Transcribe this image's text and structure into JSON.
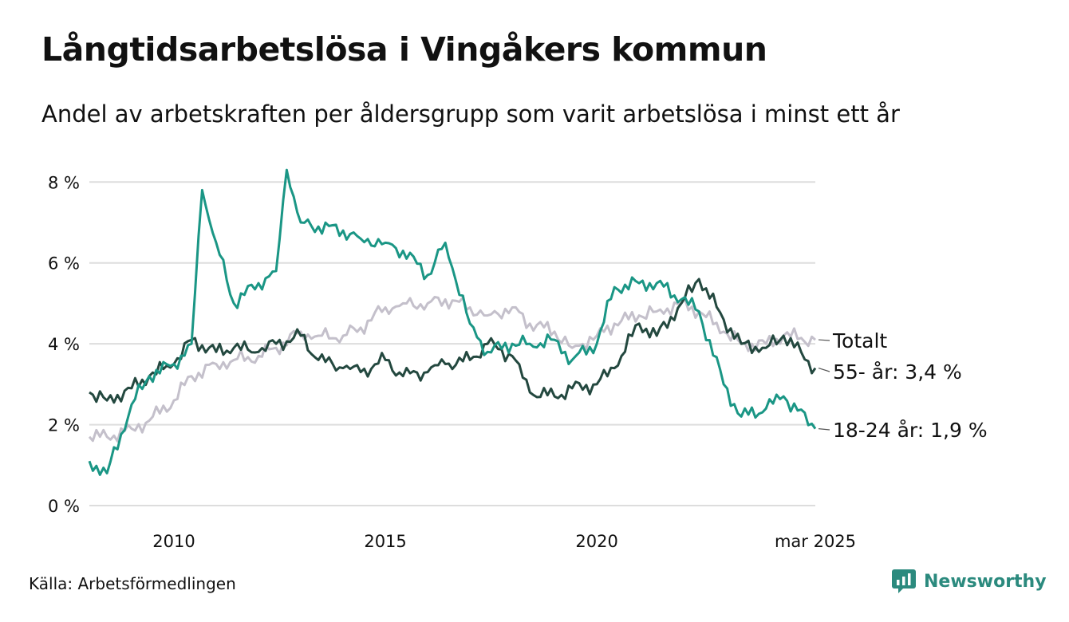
{
  "header": {
    "title": "Långtidsarbetslösa i Vingåkers kommun",
    "subtitle": "Andel av arbetskraften per åldersgrupp som varit arbetslösa i minst ett år"
  },
  "footer": {
    "source": "Källa: Arbetsförmedlingen",
    "brand": "Newsworthy"
  },
  "colors": {
    "total": "#c4c0cb",
    "age55": "#23483f",
    "age1824": "#1a9685",
    "grid": "#dddddd",
    "brand": "#2b8a7e"
  },
  "chart_data": {
    "type": "line",
    "title": "Långtidsarbetslösa i Vingåkers kommun",
    "subtitle": "Andel av arbetskraften per åldersgrupp som varit arbetslösa i minst ett år",
    "xlabel": "",
    "ylabel": "",
    "x_start": "2008-01",
    "x_end": "2025-03",
    "x_step": "month",
    "x_ticks": [
      {
        "x": "2010-01",
        "label": "2010"
      },
      {
        "x": "2015-01",
        "label": "2015"
      },
      {
        "x": "2020-01",
        "label": "2020"
      },
      {
        "x": "2025-03",
        "label": "mar 2025"
      }
    ],
    "ylim": [
      0,
      8.4
    ],
    "y_ticks": [
      {
        "value": 0,
        "label": "0 %"
      },
      {
        "value": 2,
        "label": "2 %"
      },
      {
        "value": 4,
        "label": "4 %"
      },
      {
        "value": 6,
        "label": "6 %"
      },
      {
        "value": 8,
        "label": "8 %"
      }
    ],
    "grid": true,
    "legend": "end-of-line labels",
    "series": [
      {
        "name": "Totalt",
        "end_label": "Totalt",
        "color_key": "total",
        "anchors": [
          [
            "2008-01",
            1.7
          ],
          [
            "2008-06",
            1.7
          ],
          [
            "2009-01",
            1.9
          ],
          [
            "2009-06",
            2.1
          ],
          [
            "2010-01",
            2.6
          ],
          [
            "2010-06",
            3.2
          ],
          [
            "2011-01",
            3.5
          ],
          [
            "2011-06",
            3.6
          ],
          [
            "2012-01",
            3.7
          ],
          [
            "2012-06",
            3.9
          ],
          [
            "2013-01",
            4.3
          ],
          [
            "2013-06",
            4.2
          ],
          [
            "2014-01",
            4.2
          ],
          [
            "2014-06",
            4.4
          ],
          [
            "2015-01",
            4.9
          ],
          [
            "2015-06",
            5.0
          ],
          [
            "2016-01",
            5.0
          ],
          [
            "2016-06",
            5.1
          ],
          [
            "2017-01",
            4.9
          ],
          [
            "2017-06",
            4.7
          ],
          [
            "2018-01",
            4.9
          ],
          [
            "2018-06",
            4.5
          ],
          [
            "2019-01",
            4.3
          ],
          [
            "2019-06",
            3.9
          ],
          [
            "2020-01",
            4.2
          ],
          [
            "2020-06",
            4.5
          ],
          [
            "2021-01",
            4.7
          ],
          [
            "2021-06",
            4.8
          ],
          [
            "2022-01",
            5.0
          ],
          [
            "2022-06",
            4.8
          ],
          [
            "2023-01",
            4.3
          ],
          [
            "2023-06",
            4.0
          ],
          [
            "2024-01",
            4.0
          ],
          [
            "2024-06",
            4.2
          ],
          [
            "2025-03",
            4.1
          ]
        ]
      },
      {
        "name": "55- år",
        "end_label": "55- år: 3,4 %",
        "color_key": "age55",
        "anchors": [
          [
            "2008-01",
            2.8
          ],
          [
            "2008-06",
            2.6
          ],
          [
            "2009-01",
            2.9
          ],
          [
            "2009-06",
            3.2
          ],
          [
            "2010-01",
            3.5
          ],
          [
            "2010-06",
            4.1
          ],
          [
            "2011-01",
            3.8
          ],
          [
            "2011-06",
            3.9
          ],
          [
            "2012-01",
            3.8
          ],
          [
            "2012-06",
            4.0
          ],
          [
            "2013-01",
            4.2
          ],
          [
            "2013-06",
            3.6
          ],
          [
            "2014-01",
            3.4
          ],
          [
            "2014-06",
            3.3
          ],
          [
            "2015-01",
            3.6
          ],
          [
            "2015-06",
            3.2
          ],
          [
            "2016-01",
            3.3
          ],
          [
            "2016-06",
            3.5
          ],
          [
            "2017-01",
            3.6
          ],
          [
            "2017-06",
            4.0
          ],
          [
            "2018-01",
            3.7
          ],
          [
            "2018-06",
            2.8
          ],
          [
            "2019-01",
            2.7
          ],
          [
            "2019-06",
            2.9
          ],
          [
            "2020-01",
            3.0
          ],
          [
            "2020-06",
            3.4
          ],
          [
            "2021-01",
            4.5
          ],
          [
            "2021-06",
            4.2
          ],
          [
            "2022-01",
            5.0
          ],
          [
            "2022-06",
            5.6
          ],
          [
            "2023-01",
            4.6
          ],
          [
            "2023-06",
            4.0
          ],
          [
            "2024-01",
            3.9
          ],
          [
            "2024-06",
            4.2
          ],
          [
            "2025-03",
            3.4
          ]
        ]
      },
      {
        "name": "18-24 år",
        "end_label": "18-24 år: 1,9 %",
        "color_key": "age1824",
        "anchors": [
          [
            "2008-01",
            1.1
          ],
          [
            "2008-06",
            0.8
          ],
          [
            "2009-01",
            2.5
          ],
          [
            "2009-06",
            3.2
          ],
          [
            "2010-01",
            3.5
          ],
          [
            "2010-06",
            4.0
          ],
          [
            "2010-09",
            7.8
          ],
          [
            "2011-01",
            6.5
          ],
          [
            "2011-06",
            5.0
          ],
          [
            "2012-01",
            5.5
          ],
          [
            "2012-06",
            5.8
          ],
          [
            "2012-09",
            8.3
          ],
          [
            "2013-01",
            7.0
          ],
          [
            "2013-06",
            6.9
          ],
          [
            "2014-01",
            6.8
          ],
          [
            "2014-06",
            6.6
          ],
          [
            "2015-01",
            6.5
          ],
          [
            "2015-06",
            6.3
          ],
          [
            "2016-01",
            5.7
          ],
          [
            "2016-06",
            6.5
          ],
          [
            "2017-01",
            4.5
          ],
          [
            "2017-06",
            3.8
          ],
          [
            "2018-01",
            4.0
          ],
          [
            "2018-06",
            4.0
          ],
          [
            "2019-01",
            4.1
          ],
          [
            "2019-06",
            3.6
          ],
          [
            "2020-01",
            4.0
          ],
          [
            "2020-06",
            5.4
          ],
          [
            "2021-01",
            5.5
          ],
          [
            "2021-06",
            5.5
          ],
          [
            "2022-01",
            5.1
          ],
          [
            "2022-06",
            4.8
          ],
          [
            "2023-01",
            3.0
          ],
          [
            "2023-06",
            2.2
          ],
          [
            "2024-01",
            2.4
          ],
          [
            "2024-06",
            2.7
          ],
          [
            "2025-03",
            1.9
          ]
        ]
      }
    ]
  }
}
